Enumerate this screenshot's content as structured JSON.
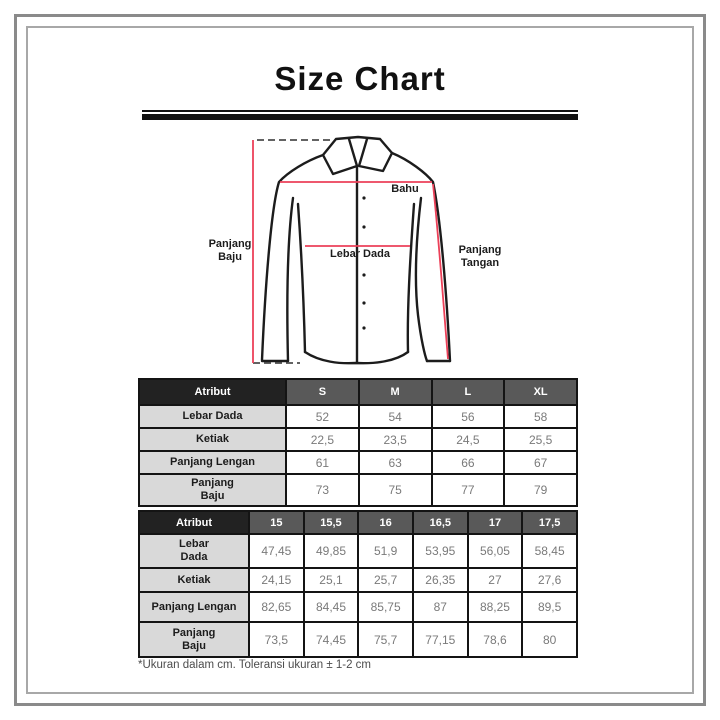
{
  "title": "Size Chart",
  "diagram": {
    "labels": {
      "panjang_baju": "Panjang\nBaju",
      "bahu": "Bahu",
      "lebar_dada": "Lebar Dada",
      "panjang_tangan": "Panjang\nTangan"
    }
  },
  "tables": [
    {
      "header": [
        "Atribut",
        "S",
        "M",
        "L",
        "XL"
      ],
      "rows": [
        {
          "label": "Lebar Dada",
          "values": [
            "52",
            "54",
            "56",
            "58"
          ]
        },
        {
          "label": "Ketiak",
          "values": [
            "22,5",
            "23,5",
            "24,5",
            "25,5"
          ]
        },
        {
          "label": "Panjang Lengan",
          "values": [
            "61",
            "63",
            "66",
            "67"
          ]
        },
        {
          "label": "Panjang\nBaju",
          "values": [
            "73",
            "75",
            "77",
            "79"
          ]
        }
      ]
    },
    {
      "header": [
        "Atribut",
        "15",
        "15,5",
        "16",
        "16,5",
        "17",
        "17,5"
      ],
      "rows": [
        {
          "label": "Lebar\nDada",
          "values": [
            "47,45",
            "49,85",
            "51,9",
            "53,95",
            "56,05",
            "58,45"
          ]
        },
        {
          "label": "Ketiak",
          "values": [
            "24,15",
            "25,1",
            "25,7",
            "26,35",
            "27",
            "27,6"
          ]
        },
        {
          "label": "Panjang Lengan",
          "values": [
            "82,65",
            "84,45",
            "85,75",
            "87",
            "88,25",
            "89,5"
          ]
        },
        {
          "label": "Panjang\nBaju",
          "values": [
            "73,5",
            "74,45",
            "75,7",
            "77,15",
            "78,6",
            "80"
          ]
        }
      ]
    }
  ],
  "footnote": "*Ukuran dalam cm. Toleransi ukuran ± 1-2 cm",
  "colors": {
    "accent": "#ec4159",
    "ink": "#1c1c1c",
    "frame_outer": "#8a8a8a",
    "frame_inner": "#a8a8a8",
    "th_dark": "#222222",
    "th_gray": "#595959",
    "label_bg": "#d9d9d9",
    "value_ink": "#7a7a7a",
    "muted": "#4d4d4d"
  }
}
